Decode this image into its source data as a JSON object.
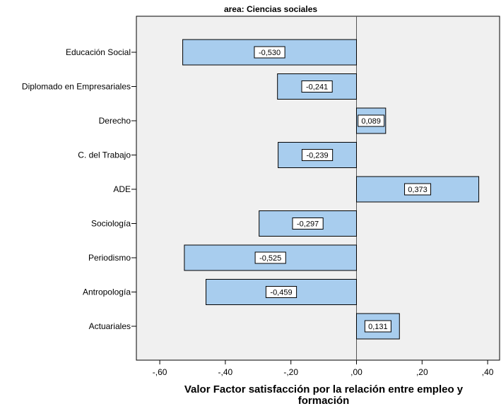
{
  "chart_data": {
    "type": "bar",
    "orientation": "horizontal",
    "title": "area: Ciencias sociales",
    "xlabel": [
      "Valor Factor satisfacción por la relación entre empleo y",
      "formación"
    ],
    "ylabel": "",
    "xlim": [
      -0.62,
      0.41
    ],
    "x_ticks": [
      -0.6,
      -0.4,
      -0.2,
      0.0,
      0.2,
      0.4
    ],
    "x_tick_labels": [
      "-,60",
      "-,40",
      "-,20",
      ",00",
      ",20",
      ",40"
    ],
    "grid": false,
    "categories": [
      "Educación Social",
      "Diplomado en Empresariales",
      "Derecho",
      "C. del Trabajo",
      "ADE",
      "Sociología",
      "Periodismo",
      "Antropología",
      "Actuariales"
    ],
    "values": [
      -0.53,
      -0.241,
      0.089,
      -0.239,
      0.373,
      -0.297,
      -0.525,
      -0.459,
      0.131
    ],
    "value_labels": [
      "-0,530",
      "-0,241",
      "0,089",
      "-0,239",
      "0,373",
      "-0,297",
      "-0,525",
      "-0,459",
      "0,131"
    ],
    "bar_color": "#a8cdee",
    "plot_background": "#f0f0f0"
  }
}
